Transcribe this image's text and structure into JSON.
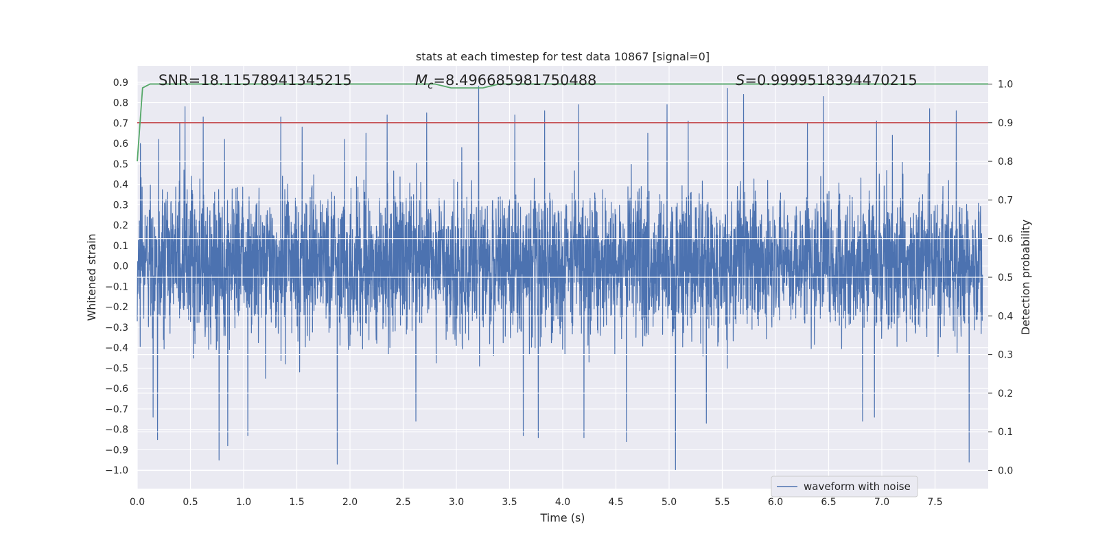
{
  "chart_data": {
    "type": "line",
    "title": "stats at each timestep for test data 10867 [signal=0]",
    "xlabel": "Time (s)",
    "ylabel": "Whitened strain",
    "y2label": "Detection probability",
    "xlim": [
      0.0,
      8.0
    ],
    "ylim": [
      -1.09,
      0.98
    ],
    "y2lim": [
      -0.047,
      1.047
    ],
    "xticks": [
      "0.0",
      "0.5",
      "1.0",
      "1.5",
      "2.0",
      "2.5",
      "3.0",
      "3.5",
      "4.0",
      "4.5",
      "5.0",
      "5.5",
      "6.0",
      "6.5",
      "7.0",
      "7.5"
    ],
    "yticks": [
      "0.9",
      "0.8",
      "0.7",
      "0.6",
      "0.5",
      "0.4",
      "0.3",
      "0.2",
      "0.1",
      "0.0",
      "−0.1",
      "−0.2",
      "−0.3",
      "−0.4",
      "−0.5",
      "−0.6",
      "−0.7",
      "−0.8",
      "−0.9",
      "−1.0"
    ],
    "y2ticks": [
      "1.0",
      "0.9",
      "0.8",
      "0.7",
      "0.6",
      "0.5",
      "0.4",
      "0.3",
      "0.2",
      "0.1",
      "0.0"
    ],
    "annotations": {
      "snr": "SNR=18.11578941345215",
      "mc_symbol": "M",
      "mc_subscript": "c",
      "mc_value": "=8.496685981750488",
      "s_symbol": "S",
      "s_value": "=0.9999518394470215"
    },
    "legend": {
      "label": "waveform with noise",
      "position": "lower right"
    },
    "threshold": {
      "value": 0.9,
      "color": "#c44e52",
      "axis": "right"
    },
    "series": [
      {
        "name": "waveform with noise",
        "axis": "left",
        "color": "#4c72b0",
        "sample_rate_hz": 2048,
        "duration_s": 8.0,
        "envelope_typical": [
          -0.45,
          0.5
        ],
        "peaks": [
          {
            "t": 0.03,
            "v": 0.6
          },
          {
            "t": 0.2,
            "v": 0.62
          },
          {
            "t": 0.4,
            "v": 0.7
          },
          {
            "t": 0.45,
            "v": 0.78
          },
          {
            "t": 0.62,
            "v": 0.73
          },
          {
            "t": 0.82,
            "v": 0.62
          },
          {
            "t": 1.35,
            "v": 0.73
          },
          {
            "t": 1.55,
            "v": 0.68
          },
          {
            "t": 1.95,
            "v": 0.62
          },
          {
            "t": 2.15,
            "v": 0.65
          },
          {
            "t": 2.35,
            "v": 0.74
          },
          {
            "t": 2.72,
            "v": 0.75
          },
          {
            "t": 3.05,
            "v": 0.58
          },
          {
            "t": 3.21,
            "v": 0.88
          },
          {
            "t": 3.55,
            "v": 0.74
          },
          {
            "t": 3.83,
            "v": 0.76
          },
          {
            "t": 4.15,
            "v": 0.79
          },
          {
            "t": 4.8,
            "v": 0.65
          },
          {
            "t": 4.98,
            "v": 0.79
          },
          {
            "t": 5.18,
            "v": 0.71
          },
          {
            "t": 5.55,
            "v": 0.87
          },
          {
            "t": 5.7,
            "v": 0.84
          },
          {
            "t": 6.3,
            "v": 0.7
          },
          {
            "t": 6.45,
            "v": 0.83
          },
          {
            "t": 6.95,
            "v": 0.71
          },
          {
            "t": 7.1,
            "v": 0.64
          },
          {
            "t": 7.45,
            "v": 0.77
          },
          {
            "t": 7.7,
            "v": 0.76
          },
          {
            "t": 0.15,
            "v": -0.74
          },
          {
            "t": 0.19,
            "v": -0.85
          },
          {
            "t": 0.77,
            "v": -0.95
          },
          {
            "t": 0.85,
            "v": -0.88
          },
          {
            "t": 1.04,
            "v": -0.83
          },
          {
            "t": 1.88,
            "v": -0.97
          },
          {
            "t": 2.62,
            "v": -0.76
          },
          {
            "t": 3.63,
            "v": -0.83
          },
          {
            "t": 3.77,
            "v": -0.84
          },
          {
            "t": 4.2,
            "v": -0.84
          },
          {
            "t": 4.6,
            "v": -0.86
          },
          {
            "t": 5.06,
            "v": -1.0
          },
          {
            "t": 5.35,
            "v": -0.77
          },
          {
            "t": 6.82,
            "v": -0.76
          },
          {
            "t": 6.93,
            "v": -0.74
          },
          {
            "t": 7.82,
            "v": -0.96
          }
        ]
      },
      {
        "name": "detection probability",
        "axis": "right",
        "color": "#55a868",
        "x": [
          0.0,
          0.05,
          0.12,
          1.0,
          2.0,
          2.8,
          2.95,
          3.1,
          3.25,
          3.4,
          3.6,
          4.0,
          4.3,
          4.45,
          5.0,
          6.0,
          7.0,
          8.0
        ],
        "y": [
          0.8,
          0.99,
          1.0,
          1.0,
          1.0,
          1.0,
          0.99,
          0.99,
          0.99,
          1.0,
          1.0,
          1.0,
          1.0,
          1.0,
          1.0,
          1.0,
          1.0,
          1.0
        ]
      }
    ]
  }
}
